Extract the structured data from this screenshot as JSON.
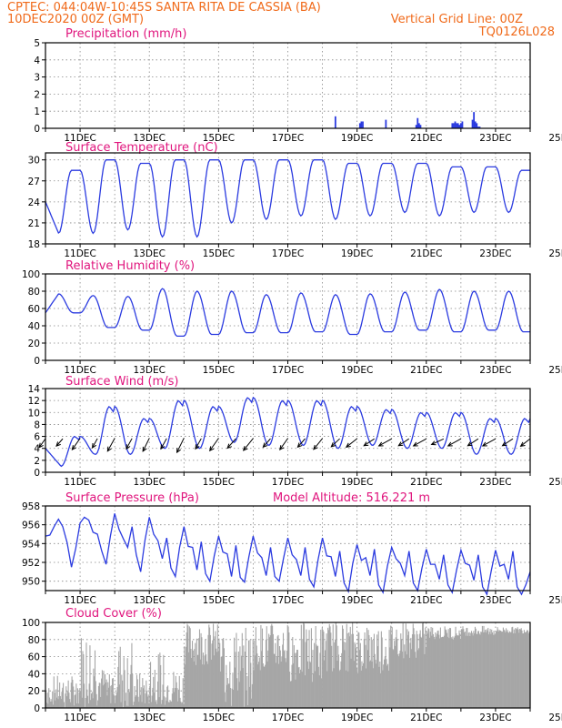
{
  "header": {
    "station": "CPTEC:   044:04W-10:45S   SANTA RITA DE CASSIA (BA)",
    "run": "10DEC2020 00Z (GMT)",
    "grid_note": "Vertical Grid Line: 00Z",
    "code": "TQ0126L028"
  },
  "colors": {
    "header": "#f06a1a",
    "title": "#e0157d",
    "line": "#2b3be0",
    "bar": "#2b3be0",
    "cloud": "#a6a6a6",
    "wind": "#000000"
  },
  "x_labels": [
    "11DEC",
    "13DEC",
    "15DEC",
    "17DEC",
    "19DEC",
    "21DEC",
    "23DEC",
    "25DEC"
  ],
  "chart_data": [
    {
      "type": "bar",
      "title": "Precipitation (mm/h)",
      "ylim": [
        0,
        5
      ],
      "yticks": [
        "0",
        "1",
        "2",
        "3",
        "4",
        "5"
      ],
      "grid": true,
      "hours": [
        201,
        218,
        219,
        220,
        236,
        257,
        258,
        259,
        260,
        282,
        283,
        284,
        285,
        286,
        287,
        288,
        289,
        296,
        297,
        298,
        299,
        300,
        301
      ],
      "values": [
        0.7,
        0.3,
        0.4,
        0.4,
        0.5,
        0.2,
        0.6,
        0.3,
        0.2,
        0.3,
        0.3,
        0.4,
        0.3,
        0.3,
        0.2,
        0.3,
        0.4,
        0.5,
        0.95,
        0.4,
        0.3,
        0.1,
        0.1
      ]
    },
    {
      "type": "line",
      "title": "Surface Temperature (nC)",
      "ylim": [
        18,
        31
      ],
      "yticks": [
        "18",
        "21",
        "24",
        "27",
        "30"
      ],
      "grid": true,
      "max": [
        28.5,
        30,
        29.5,
        30,
        30,
        30,
        30,
        30,
        29.5,
        29.5,
        29.5,
        29,
        29,
        28.5,
        28.5,
        28.5,
        29,
        29,
        29,
        29,
        29.5
      ],
      "min": [
        19.5,
        19.5,
        20,
        19,
        19,
        21,
        21.5,
        22,
        21.5,
        22,
        22.5,
        22,
        22.5,
        22.5,
        21.5,
        21,
        21.5,
        21,
        21,
        20.5,
        21
      ]
    },
    {
      "type": "line",
      "title": "Relative Humidity (%)",
      "ylim": [
        0,
        100
      ],
      "yticks": [
        "0",
        "20",
        "40",
        "60",
        "80",
        "100"
      ],
      "grid": true,
      "max": [
        77,
        75,
        74,
        83,
        80,
        80,
        76,
        78,
        76,
        77,
        79,
        82,
        80,
        80,
        77,
        78,
        80,
        82,
        80,
        88,
        80
      ],
      "min": [
        55,
        38,
        35,
        28,
        30,
        32,
        32,
        33,
        30,
        33,
        35,
        33,
        35,
        33,
        35,
        36,
        33,
        35,
        35,
        37,
        40
      ]
    },
    {
      "type": "line",
      "title": "Surface Wind (m/s)",
      "ylim": [
        0,
        14
      ],
      "yticks": [
        "0",
        "2",
        "4",
        "6",
        "8",
        "10",
        "12",
        "14"
      ],
      "grid": true,
      "max": [
        6,
        11,
        9,
        12,
        11,
        12.5,
        12,
        12,
        11,
        10.5,
        10,
        10,
        9,
        9,
        8,
        8,
        7.5,
        8,
        7,
        8,
        10.5
      ],
      "min": [
        1,
        3,
        3,
        4,
        4,
        5,
        4.5,
        4.5,
        4,
        4.5,
        4,
        4,
        3,
        3,
        3,
        2.5,
        2.5,
        3,
        3,
        3,
        2.5
      ],
      "arrows": [
        {
          "h": 0,
          "dir": 65,
          "spd": 6
        },
        {
          "h": 12,
          "dir": 60,
          "spd": 5
        },
        {
          "h": 24,
          "dir": 65,
          "spd": 8
        },
        {
          "h": 36,
          "dir": 70,
          "spd": 6
        },
        {
          "h": 48,
          "dir": 70,
          "spd": 9
        },
        {
          "h": 60,
          "dir": 70,
          "spd": 7
        },
        {
          "h": 72,
          "dir": 72,
          "spd": 9
        },
        {
          "h": 84,
          "dir": 70,
          "spd": 7
        },
        {
          "h": 96,
          "dir": 72,
          "spd": 10
        },
        {
          "h": 108,
          "dir": 70,
          "spd": 7
        },
        {
          "h": 120,
          "dir": 65,
          "spd": 9
        },
        {
          "h": 132,
          "dir": 60,
          "spd": 7
        },
        {
          "h": 144,
          "dir": 62,
          "spd": 9
        },
        {
          "h": 156,
          "dir": 60,
          "spd": 6
        },
        {
          "h": 168,
          "dir": 65,
          "spd": 8
        },
        {
          "h": 180,
          "dir": 60,
          "spd": 6
        },
        {
          "h": 192,
          "dir": 62,
          "spd": 8
        },
        {
          "h": 204,
          "dir": 55,
          "spd": 6
        },
        {
          "h": 216,
          "dir": 50,
          "spd": 7
        },
        {
          "h": 228,
          "dir": 45,
          "spd": 6
        },
        {
          "h": 240,
          "dir": 40,
          "spd": 7
        },
        {
          "h": 252,
          "dir": 45,
          "spd": 6
        },
        {
          "h": 264,
          "dir": 40,
          "spd": 7
        },
        {
          "h": 276,
          "dir": 35,
          "spd": 6
        },
        {
          "h": 288,
          "dir": 40,
          "spd": 7
        },
        {
          "h": 300,
          "dir": 45,
          "spd": 6
        },
        {
          "h": 312,
          "dir": 40,
          "spd": 7
        },
        {
          "h": 324,
          "dir": 45,
          "spd": 6
        },
        {
          "h": 336,
          "dir": 50,
          "spd": 6
        }
      ]
    },
    {
      "type": "line",
      "title": "Surface Pressure (hPa)",
      "subtitle": "Model Altitude: 516.221 m",
      "ylim": [
        949,
        958
      ],
      "yticks": [
        "950",
        "952",
        "954",
        "956",
        "958"
      ],
      "grid": true,
      "series": [
        {
          "h": 0,
          "v": 954.8
        },
        {
          "h": 3,
          "v": 954.9
        },
        {
          "h": 6,
          "v": 955.8
        },
        {
          "h": 9,
          "v": 956.6
        },
        {
          "h": 12,
          "v": 955.8
        },
        {
          "h": 15,
          "v": 954.1
        },
        {
          "h": 18,
          "v": 951.5
        },
        {
          "h": 21,
          "v": 953.5
        },
        {
          "h": 24,
          "v": 956.2
        },
        {
          "h": 27,
          "v": 956.8
        },
        {
          "h": 30,
          "v": 956.5
        },
        {
          "h": 33,
          "v": 955.2
        },
        {
          "h": 36,
          "v": 955.0
        },
        {
          "h": 39,
          "v": 953.2
        },
        {
          "h": 42,
          "v": 951.8
        },
        {
          "h": 45,
          "v": 954.8
        },
        {
          "h": 48,
          "v": 957.2
        },
        {
          "h": 51,
          "v": 955.5
        },
        {
          "h": 54,
          "v": 954.5
        },
        {
          "h": 57,
          "v": 953.6
        },
        {
          "h": 60,
          "v": 955.8
        },
        {
          "h": 63,
          "v": 952.8
        },
        {
          "h": 66,
          "v": 951.0
        },
        {
          "h": 69,
          "v": 954.4
        },
        {
          "h": 72,
          "v": 956.8
        },
        {
          "h": 75,
          "v": 955.0
        },
        {
          "h": 78,
          "v": 954.3
        },
        {
          "h": 81,
          "v": 952.4
        },
        {
          "h": 84,
          "v": 954.6
        },
        {
          "h": 87,
          "v": 951.4
        },
        {
          "h": 90,
          "v": 950.5
        },
        {
          "h": 93,
          "v": 953.6
        },
        {
          "h": 96,
          "v": 955.8
        },
        {
          "h": 99,
          "v": 953.7
        },
        {
          "h": 102,
          "v": 953.6
        },
        {
          "h": 105,
          "v": 951.2
        },
        {
          "h": 108,
          "v": 954.2
        },
        {
          "h": 111,
          "v": 950.8
        },
        {
          "h": 114,
          "v": 950.0
        },
        {
          "h": 117,
          "v": 952.7
        },
        {
          "h": 120,
          "v": 954.8
        },
        {
          "h": 123,
          "v": 953.1
        },
        {
          "h": 126,
          "v": 952.9
        },
        {
          "h": 129,
          "v": 950.5
        },
        {
          "h": 132,
          "v": 953.8
        },
        {
          "h": 135,
          "v": 950.4
        },
        {
          "h": 138,
          "v": 949.9
        },
        {
          "h": 141,
          "v": 952.6
        },
        {
          "h": 144,
          "v": 954.8
        },
        {
          "h": 147,
          "v": 953.0
        },
        {
          "h": 150,
          "v": 952.5
        },
        {
          "h": 153,
          "v": 950.6
        },
        {
          "h": 156,
          "v": 953.6
        },
        {
          "h": 159,
          "v": 950.5
        },
        {
          "h": 162,
          "v": 950.0
        },
        {
          "h": 165,
          "v": 952.4
        },
        {
          "h": 168,
          "v": 954.6
        },
        {
          "h": 171,
          "v": 952.8
        },
        {
          "h": 174,
          "v": 952.3
        },
        {
          "h": 177,
          "v": 950.6
        },
        {
          "h": 180,
          "v": 953.6
        },
        {
          "h": 183,
          "v": 950.2
        },
        {
          "h": 186,
          "v": 949.4
        },
        {
          "h": 189,
          "v": 952.3
        },
        {
          "h": 192,
          "v": 954.6
        },
        {
          "h": 195,
          "v": 952.7
        },
        {
          "h": 198,
          "v": 952.6
        },
        {
          "h": 201,
          "v": 950.5
        },
        {
          "h": 204,
          "v": 953.2
        },
        {
          "h": 207,
          "v": 949.8
        },
        {
          "h": 210,
          "v": 948.9
        },
        {
          "h": 213,
          "v": 951.9
        },
        {
          "h": 216,
          "v": 953.9
        },
        {
          "h": 219,
          "v": 952.2
        },
        {
          "h": 222,
          "v": 952.5
        },
        {
          "h": 225,
          "v": 950.6
        },
        {
          "h": 228,
          "v": 953.4
        },
        {
          "h": 231,
          "v": 949.6
        },
        {
          "h": 234,
          "v": 948.8
        },
        {
          "h": 237,
          "v": 951.6
        },
        {
          "h": 240,
          "v": 953.6
        },
        {
          "h": 243,
          "v": 952.4
        },
        {
          "h": 246,
          "v": 951.9
        },
        {
          "h": 249,
          "v": 950.6
        },
        {
          "h": 252,
          "v": 953.2
        },
        {
          "h": 255,
          "v": 949.8
        },
        {
          "h": 258,
          "v": 949.0
        },
        {
          "h": 261,
          "v": 951.4
        },
        {
          "h": 264,
          "v": 953.4
        },
        {
          "h": 267,
          "v": 951.8
        },
        {
          "h": 270,
          "v": 951.8
        },
        {
          "h": 273,
          "v": 950.2
        },
        {
          "h": 276,
          "v": 952.8
        },
        {
          "h": 279,
          "v": 949.6
        },
        {
          "h": 282,
          "v": 948.8
        },
        {
          "h": 285,
          "v": 951.2
        },
        {
          "h": 288,
          "v": 953.3
        },
        {
          "h": 291,
          "v": 951.9
        },
        {
          "h": 294,
          "v": 951.7
        },
        {
          "h": 297,
          "v": 950.1
        },
        {
          "h": 300,
          "v": 952.8
        },
        {
          "h": 303,
          "v": 949.4
        },
        {
          "h": 306,
          "v": 948.6
        },
        {
          "h": 309,
          "v": 951.1
        },
        {
          "h": 312,
          "v": 953.3
        },
        {
          "h": 315,
          "v": 951.6
        },
        {
          "h": 318,
          "v": 951.8
        },
        {
          "h": 321,
          "v": 950.2
        },
        {
          "h": 324,
          "v": 953.2
        },
        {
          "h": 327,
          "v": 949.4
        },
        {
          "h": 330,
          "v": 948.6
        },
        {
          "h": 333,
          "v": 949.6
        },
        {
          "h": 336,
          "v": 951.0
        }
      ]
    },
    {
      "type": "area",
      "title": "Cloud Cover (%)",
      "ylim": [
        0,
        100
      ],
      "yticks": [
        "0",
        "20",
        "40",
        "60",
        "80",
        "100"
      ],
      "grid": true,
      "segments": [
        {
          "from": 0,
          "to": 24,
          "level": 20,
          "var": 18
        },
        {
          "from": 24,
          "to": 36,
          "level": 50,
          "var": 40
        },
        {
          "from": 36,
          "to": 48,
          "level": 28,
          "var": 20
        },
        {
          "from": 48,
          "to": 60,
          "level": 40,
          "var": 40
        },
        {
          "from": 60,
          "to": 72,
          "level": 22,
          "var": 20
        },
        {
          "from": 72,
          "to": 84,
          "level": 35,
          "var": 30
        },
        {
          "from": 84,
          "to": 96,
          "level": 25,
          "var": 22
        },
        {
          "from": 96,
          "to": 120,
          "level": 75,
          "var": 25
        },
        {
          "from": 120,
          "to": 144,
          "level": 55,
          "var": 40
        },
        {
          "from": 144,
          "to": 168,
          "level": 72,
          "var": 28
        },
        {
          "from": 168,
          "to": 192,
          "level": 65,
          "var": 35
        },
        {
          "from": 192,
          "to": 216,
          "level": 72,
          "var": 30
        },
        {
          "from": 216,
          "to": 240,
          "level": 70,
          "var": 30
        },
        {
          "from": 240,
          "to": 264,
          "level": 80,
          "var": 22
        },
        {
          "from": 264,
          "to": 288,
          "level": 88,
          "var": 8
        },
        {
          "from": 288,
          "to": 312,
          "level": 90,
          "var": 6
        },
        {
          "from": 312,
          "to": 336,
          "level": 91,
          "var": 4
        }
      ]
    }
  ]
}
